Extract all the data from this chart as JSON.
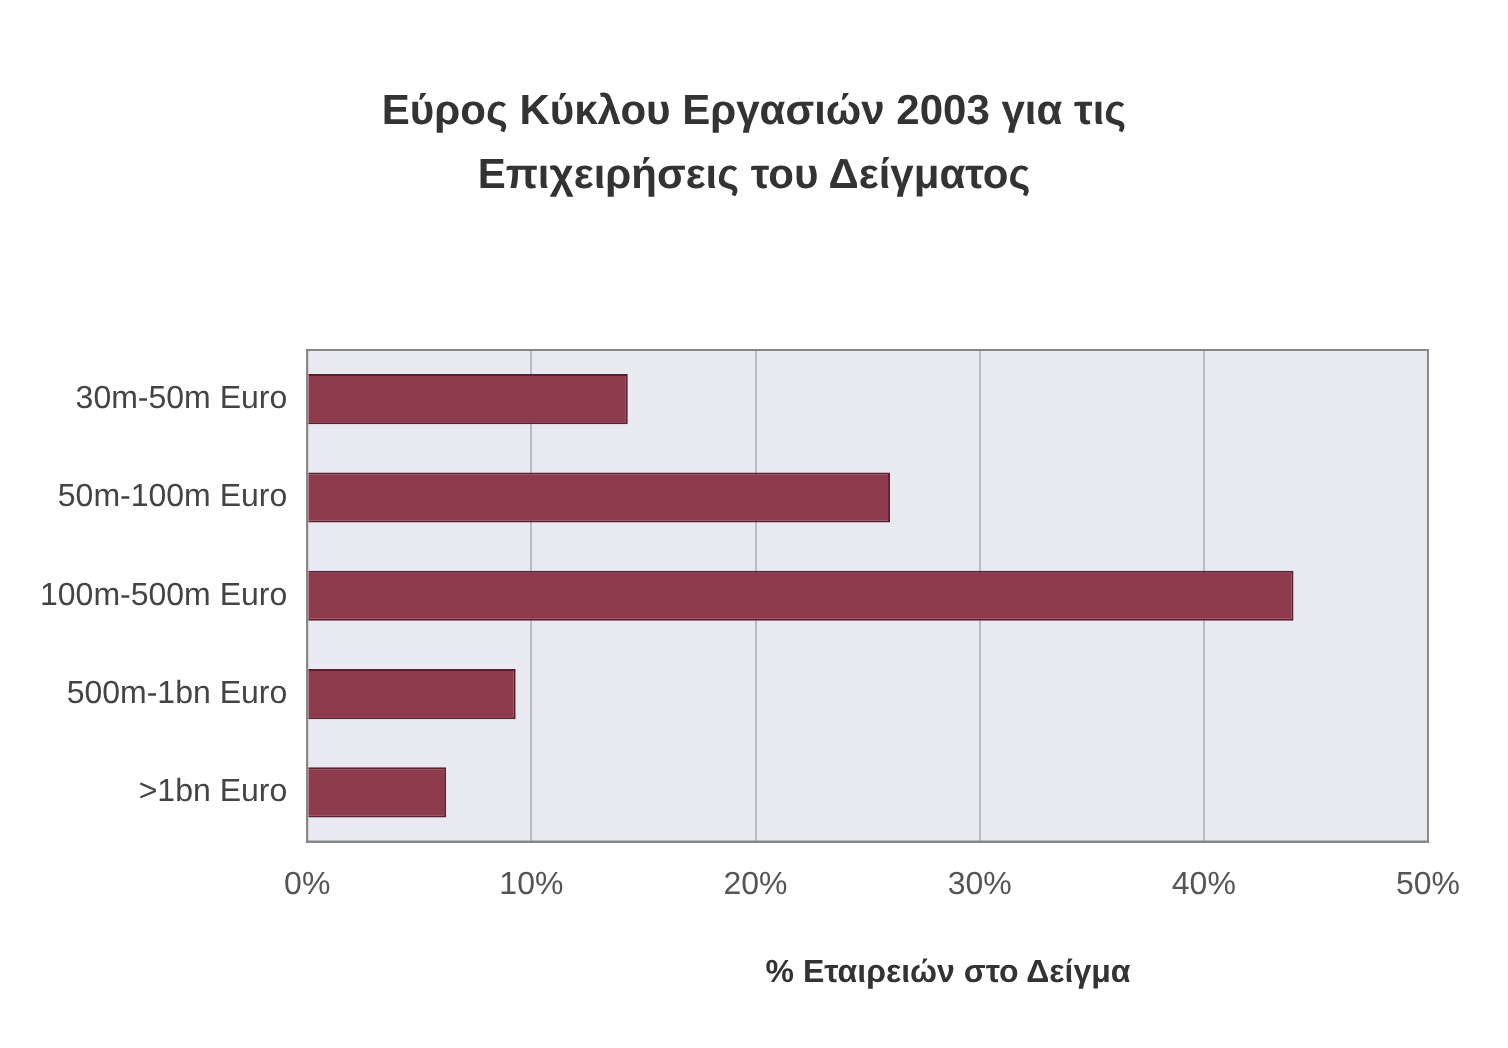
{
  "chart_data": {
    "type": "bar",
    "orientation": "horizontal",
    "title": "Εύρος Κύκλου Εργασιών 2003 για τις Επιχειρήσεις του Δείγματος",
    "xlabel": "% Εταιρειών στο Δείγμα",
    "categories": [
      "30m-50m Euro",
      "50m-100m Euro",
      "100m-500m Euro",
      "500m-1bn Euro",
      ">1bn Euro"
    ],
    "values": [
      14.3,
      26,
      44,
      9.3,
      6.2
    ],
    "color": "#8c3a4c",
    "xlim": [
      0,
      50
    ],
    "xticks": [
      {
        "value": 0,
        "label": "0%"
      },
      {
        "value": 10,
        "label": "10%"
      },
      {
        "value": 20,
        "label": "20%"
      },
      {
        "value": 30,
        "label": "30%"
      },
      {
        "value": 40,
        "label": "40%"
      },
      {
        "value": 50,
        "label": "50%"
      }
    ],
    "grid": "x",
    "legend": false
  }
}
